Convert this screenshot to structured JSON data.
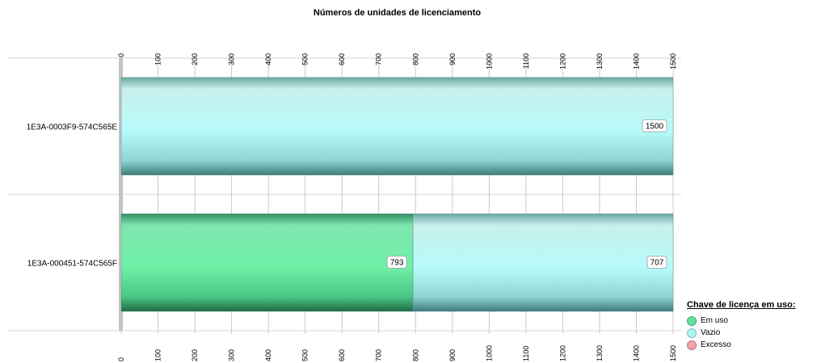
{
  "chart_data": {
    "type": "bar",
    "orientation": "horizontal",
    "stacked": true,
    "title": "Números de unidades de licenciamento",
    "categories": [
      "1E3A-0003F9-574C565E",
      "1E3A-000451-574C565F"
    ],
    "series": [
      {
        "name": "Em uso",
        "values": [
          0,
          793
        ],
        "color": "#5fe3a0"
      },
      {
        "name": "Vazio",
        "values": [
          1500,
          707
        ],
        "color": "#aef6f4"
      },
      {
        "name": "Excesso",
        "values": [
          0,
          0
        ],
        "color": "#f4a2a8"
      }
    ],
    "xlim": [
      0,
      1500
    ],
    "ticks": [
      0,
      100,
      200,
      300,
      400,
      500,
      600,
      700,
      800,
      900,
      1000,
      1100,
      1200,
      1300,
      1400,
      1500
    ],
    "grid": true,
    "axis_labels_top_and_bottom": true,
    "data_labels": true,
    "legend": {
      "title": "Chave de licença em uso:",
      "position": "bottom-right"
    }
  }
}
